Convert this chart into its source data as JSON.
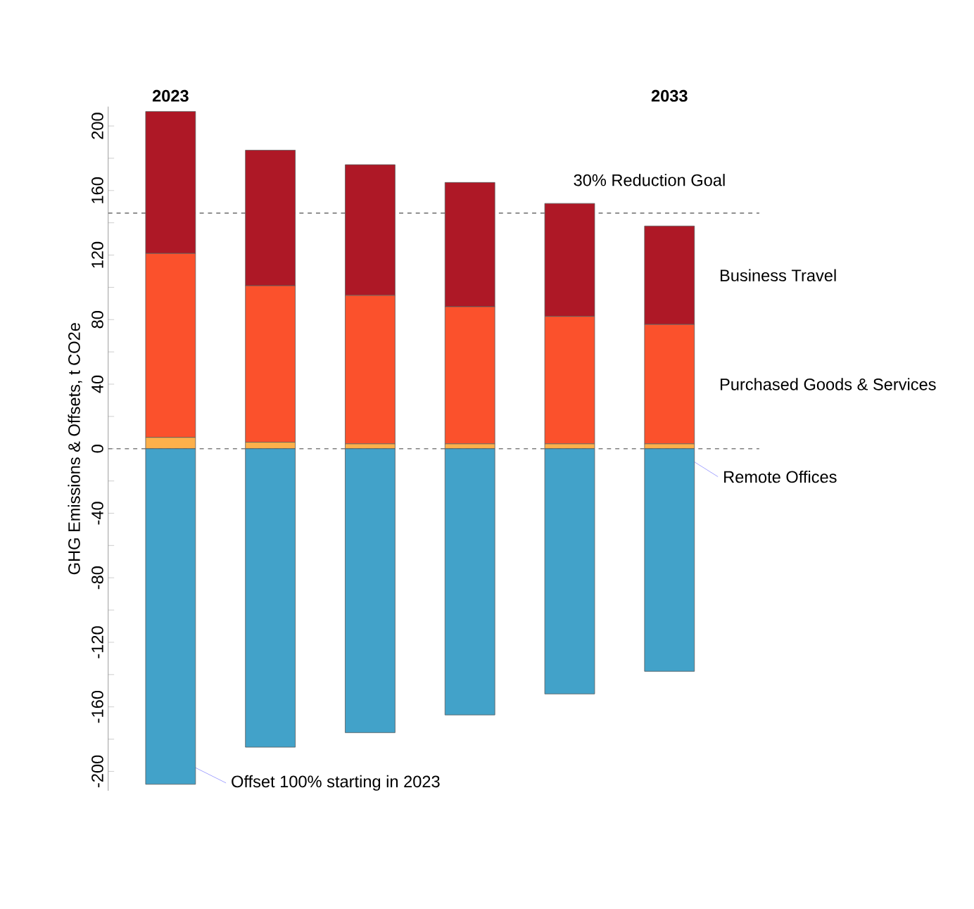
{
  "chart_data": {
    "type": "bar",
    "stacked": true,
    "categories": [
      "2023",
      null,
      null,
      null,
      null,
      "2033"
    ],
    "ylabel": "GHG Emissions & Offsets, t CO2e",
    "series": [
      {
        "name": "Remote Offices",
        "color": "#fdb04b",
        "values": [
          7,
          4,
          3,
          3,
          3,
          3
        ]
      },
      {
        "name": "Purchased Goods & Services",
        "color": "#fb512c",
        "values": [
          114,
          97,
          92,
          85,
          79,
          74
        ]
      },
      {
        "name": "Business Travel",
        "color": "#ae1826",
        "values": [
          88,
          84,
          81,
          77,
          70,
          61
        ]
      },
      {
        "color": "#42a2c9",
        "values": [
          -208,
          -185,
          -176,
          -165,
          -152,
          -138
        ]
      }
    ],
    "ylim": [
      -212,
      212
    ],
    "yticks": [
      -200,
      {
        "value": -180,
        "label": null
      },
      -160,
      {
        "value": -140,
        "label": null
      },
      -120,
      {
        "value": -100,
        "label": null
      },
      -80,
      {
        "value": -60,
        "label": null
      },
      -40,
      {
        "value": -20,
        "label": null
      },
      0,
      {
        "value": 20,
        "label": null
      },
      40,
      {
        "value": 60,
        "label": null
      },
      80,
      {
        "value": 100,
        "label": null
      },
      120,
      {
        "value": 140,
        "label": null
      },
      160,
      {
        "value": 180,
        "label": null
      },
      200
    ],
    "ref_lines": [
      {
        "axis": "y",
        "value": 146,
        "label": "30% Reduction Goal",
        "line_style": "dashed",
        "color": "#808080"
      },
      {
        "axis": "y",
        "value": 0,
        "line_style": "dashed",
        "color": "#808080"
      }
    ],
    "annotations": [
      {
        "text": "Offset 100% starting in 2023",
        "x": "2023",
        "y": -190
      }
    ]
  }
}
